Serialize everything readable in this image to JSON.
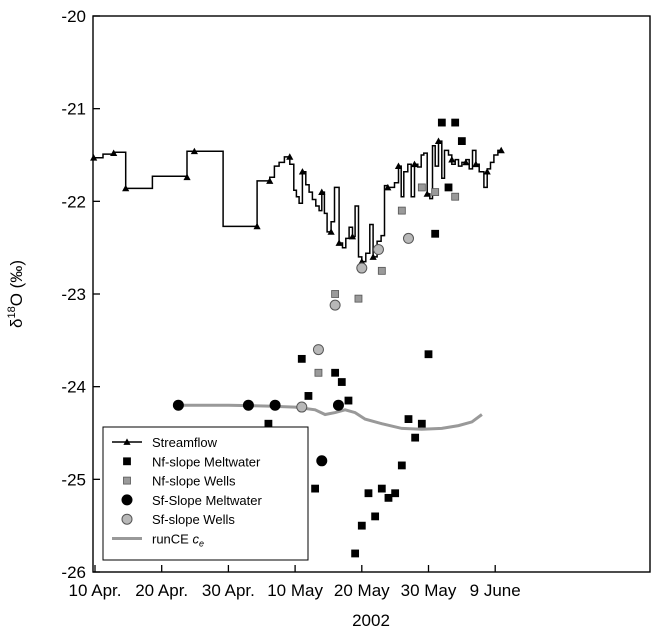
{
  "chart_data": {
    "type": "line",
    "xlabel": "2002",
    "ylabel": "δ18O (‰)",
    "ylabel_parts": {
      "delta": "δ",
      "sup": "18",
      "rest": "O (‰)"
    },
    "x_range_days": [
      0,
      60.5
    ],
    "ylim": [
      -26,
      -20
    ],
    "x_ticks": [
      {
        "label": "10 Apr.",
        "day": 0
      },
      {
        "label": "20 Apr.",
        "day": 10
      },
      {
        "label": "30 Apr.",
        "day": 20
      },
      {
        "label": "10 May",
        "day": 30
      },
      {
        "label": "20 May",
        "day": 40
      },
      {
        "label": "30 May",
        "day": 50
      },
      {
        "label": "9 June",
        "day": 60
      }
    ],
    "y_ticks": [
      "-26",
      "-25",
      "-24",
      "-23",
      "-22",
      "-21",
      "-20"
    ],
    "y_tick_values": [
      -26,
      -25,
      -24,
      -23,
      -22,
      -21,
      -20
    ],
    "legend_position": "bottom-left",
    "series": [
      {
        "name": "Streamflow",
        "kind": "step",
        "color": "#000000",
        "marker": "triangle",
        "points": [
          [
            -0.2,
            -21.53
          ],
          [
            1.2,
            -21.53
          ],
          [
            1.2,
            -21.49
          ],
          [
            2.8,
            -21.49
          ],
          [
            2.8,
            -21.47
          ],
          [
            4.6,
            -21.47
          ],
          [
            4.6,
            -21.86
          ],
          [
            8.6,
            -21.86
          ],
          [
            8.6,
            -21.73
          ],
          [
            13.8,
            -21.73
          ],
          [
            13.8,
            -21.46
          ],
          [
            19.2,
            -21.46
          ],
          [
            19.2,
            -22.27
          ],
          [
            24.3,
            -22.27
          ],
          [
            24.3,
            -21.78
          ],
          [
            26.2,
            -21.78
          ],
          [
            26.2,
            -21.74
          ],
          [
            26.9,
            -21.74
          ],
          [
            26.9,
            -21.62
          ],
          [
            27.6,
            -21.62
          ],
          [
            27.6,
            -21.58
          ],
          [
            28.4,
            -21.58
          ],
          [
            28.4,
            -21.52
          ],
          [
            29.2,
            -21.52
          ],
          [
            29.2,
            -21.6
          ],
          [
            29.8,
            -21.6
          ],
          [
            29.8,
            -21.88
          ],
          [
            30.2,
            -21.88
          ],
          [
            30.2,
            -21.95
          ],
          [
            30.6,
            -21.95
          ],
          [
            30.6,
            -22.02
          ],
          [
            31.1,
            -22.02
          ],
          [
            31.1,
            -21.68
          ],
          [
            31.6,
            -21.68
          ],
          [
            31.6,
            -21.82
          ],
          [
            32.1,
            -21.82
          ],
          [
            32.1,
            -21.9
          ],
          [
            32.6,
            -21.9
          ],
          [
            32.6,
            -21.98
          ],
          [
            33.1,
            -21.98
          ],
          [
            33.1,
            -22.05
          ],
          [
            33.6,
            -22.05
          ],
          [
            33.6,
            -22.1
          ],
          [
            34.0,
            -22.1
          ],
          [
            34.0,
            -21.9
          ],
          [
            34.4,
            -21.9
          ],
          [
            34.4,
            -22.13
          ],
          [
            34.8,
            -22.13
          ],
          [
            34.8,
            -22.33
          ],
          [
            35.4,
            -22.33
          ],
          [
            35.4,
            -22.22
          ],
          [
            35.9,
            -22.22
          ],
          [
            35.9,
            -21.85
          ],
          [
            36.6,
            -21.85
          ],
          [
            36.6,
            -22.45
          ],
          [
            37.1,
            -22.45
          ],
          [
            37.1,
            -22.5
          ],
          [
            37.6,
            -22.5
          ],
          [
            37.6,
            -22.4
          ],
          [
            38.1,
            -22.4
          ],
          [
            38.1,
            -22.28
          ],
          [
            38.6,
            -22.28
          ],
          [
            38.6,
            -22.38
          ],
          [
            39.0,
            -22.38
          ],
          [
            39.0,
            -22.05
          ],
          [
            39.5,
            -22.05
          ],
          [
            39.5,
            -22.6
          ],
          [
            40.0,
            -22.6
          ],
          [
            40.0,
            -22.65
          ],
          [
            40.6,
            -22.65
          ],
          [
            40.6,
            -22.56
          ],
          [
            41.2,
            -22.56
          ],
          [
            41.2,
            -22.25
          ],
          [
            41.7,
            -22.25
          ],
          [
            41.7,
            -22.6
          ],
          [
            42.3,
            -22.6
          ],
          [
            42.3,
            -22.43
          ],
          [
            42.9,
            -22.43
          ],
          [
            42.9,
            -22.37
          ],
          [
            43.4,
            -22.37
          ],
          [
            43.4,
            -21.83
          ],
          [
            43.9,
            -21.83
          ],
          [
            43.9,
            -21.85
          ],
          [
            44.9,
            -21.85
          ],
          [
            44.9,
            -21.8
          ],
          [
            45.5,
            -21.8
          ],
          [
            45.5,
            -21.62
          ],
          [
            45.9,
            -21.62
          ],
          [
            45.9,
            -21.95
          ],
          [
            46.3,
            -21.95
          ],
          [
            46.3,
            -21.68
          ],
          [
            46.9,
            -21.68
          ],
          [
            46.9,
            -21.6
          ],
          [
            47.4,
            -21.6
          ],
          [
            47.4,
            -21.95
          ],
          [
            47.9,
            -21.95
          ],
          [
            47.9,
            -21.6
          ],
          [
            48.4,
            -21.6
          ],
          [
            48.4,
            -21.63
          ],
          [
            48.9,
            -21.63
          ],
          [
            48.9,
            -21.5
          ],
          [
            49.3,
            -21.5
          ],
          [
            49.3,
            -21.48
          ],
          [
            49.8,
            -21.48
          ],
          [
            49.8,
            -21.92
          ],
          [
            50.2,
            -21.92
          ],
          [
            50.2,
            -21.97
          ],
          [
            50.6,
            -21.97
          ],
          [
            50.6,
            -21.4
          ],
          [
            51.0,
            -21.4
          ],
          [
            51.0,
            -21.62
          ],
          [
            51.5,
            -21.62
          ],
          [
            51.5,
            -21.35
          ],
          [
            52.0,
            -21.35
          ],
          [
            52.0,
            -21.75
          ],
          [
            52.4,
            -21.75
          ],
          [
            52.4,
            -21.45
          ],
          [
            53.0,
            -21.45
          ],
          [
            53.0,
            -21.5
          ],
          [
            53.5,
            -21.5
          ],
          [
            53.5,
            -21.6
          ],
          [
            54.0,
            -21.6
          ],
          [
            54.0,
            -21.55
          ],
          [
            54.5,
            -21.55
          ],
          [
            54.5,
            -21.62
          ],
          [
            55.0,
            -21.62
          ],
          [
            55.0,
            -21.58
          ],
          [
            55.6,
            -21.58
          ],
          [
            55.6,
            -21.55
          ],
          [
            56.1,
            -21.55
          ],
          [
            56.1,
            -21.65
          ],
          [
            56.6,
            -21.65
          ],
          [
            56.6,
            -21.45
          ],
          [
            57.1,
            -21.45
          ],
          [
            57.1,
            -21.6
          ],
          [
            57.6,
            -21.6
          ],
          [
            57.6,
            -21.68
          ],
          [
            58.3,
            -21.68
          ],
          [
            58.3,
            -21.85
          ],
          [
            58.8,
            -21.85
          ],
          [
            58.8,
            -21.65
          ],
          [
            59.3,
            -21.65
          ],
          [
            59.3,
            -21.58
          ],
          [
            59.8,
            -21.58
          ],
          [
            59.8,
            -21.5
          ],
          [
            60.4,
            -21.5
          ],
          [
            60.4,
            -21.45
          ],
          [
            60.9,
            -21.45
          ]
        ],
        "markers": [
          [
            -0.2,
            -21.53
          ],
          [
            2.8,
            -21.48
          ],
          [
            4.6,
            -21.86
          ],
          [
            13.8,
            -21.74
          ],
          [
            14.9,
            -21.46
          ],
          [
            24.3,
            -22.27
          ],
          [
            26.2,
            -21.78
          ],
          [
            29.2,
            -21.52
          ],
          [
            31.1,
            -21.68
          ],
          [
            34.0,
            -21.9
          ],
          [
            35.4,
            -22.33
          ],
          [
            36.6,
            -22.45
          ],
          [
            38.6,
            -22.38
          ],
          [
            40.0,
            -22.65
          ],
          [
            41.7,
            -22.6
          ],
          [
            43.9,
            -21.85
          ],
          [
            45.5,
            -21.62
          ],
          [
            47.9,
            -21.6
          ],
          [
            49.8,
            -21.92
          ],
          [
            51.5,
            -21.35
          ],
          [
            53.5,
            -21.55
          ],
          [
            55.6,
            -21.58
          ],
          [
            57.1,
            -21.6
          ],
          [
            58.8,
            -21.68
          ],
          [
            60.9,
            -21.45
          ]
        ]
      },
      {
        "name": "Nf-slope Meltwater",
        "kind": "scatter",
        "color": "#000000",
        "marker": "square",
        "points": [
          [
            26.0,
            -24.4
          ],
          [
            31.0,
            -23.7
          ],
          [
            32.0,
            -24.1
          ],
          [
            33.0,
            -25.1
          ],
          [
            36.0,
            -23.85
          ],
          [
            37.0,
            -23.95
          ],
          [
            38.0,
            -24.15
          ],
          [
            39.0,
            -25.8
          ],
          [
            40.0,
            -25.5
          ],
          [
            41.0,
            -25.15
          ],
          [
            42.0,
            -25.4
          ],
          [
            43.0,
            -25.1
          ],
          [
            44.0,
            -25.2
          ],
          [
            45.0,
            -25.15
          ],
          [
            46.0,
            -24.85
          ],
          [
            47.0,
            -24.35
          ],
          [
            48.0,
            -24.55
          ],
          [
            49.0,
            -24.4
          ],
          [
            50.0,
            -23.65
          ],
          [
            51.0,
            -22.35
          ],
          [
            52.0,
            -21.15
          ],
          [
            53.0,
            -21.85
          ],
          [
            54.0,
            -21.15
          ],
          [
            55.0,
            -21.35
          ]
        ]
      },
      {
        "name": "Nf-slope Wells",
        "kind": "scatter",
        "color": "#9a9a9a",
        "marker": "square",
        "points": [
          [
            33.5,
            -23.85
          ],
          [
            36.0,
            -23.0
          ],
          [
            39.5,
            -23.05
          ],
          [
            43.0,
            -22.75
          ],
          [
            46.0,
            -22.1
          ],
          [
            49.0,
            -21.85
          ],
          [
            51.0,
            -21.9
          ],
          [
            54.0,
            -21.95
          ]
        ]
      },
      {
        "name": "Sf-Slope Meltwater",
        "kind": "scatter",
        "color": "#000000",
        "marker": "circle",
        "points": [
          [
            12.5,
            -24.2
          ],
          [
            23.0,
            -24.2
          ],
          [
            27.0,
            -24.2
          ],
          [
            31.0,
            -25.0
          ],
          [
            34.0,
            -24.8
          ],
          [
            36.5,
            -24.2
          ]
        ]
      },
      {
        "name": "Sf-slope Wells",
        "kind": "scatter",
        "color": "#b8b8b8",
        "marker": "circle",
        "points": [
          [
            31.0,
            -24.22
          ],
          [
            33.5,
            -23.6
          ],
          [
            36.0,
            -23.12
          ],
          [
            40.0,
            -22.72
          ],
          [
            42.5,
            -22.52
          ],
          [
            47.0,
            -22.4
          ]
        ]
      },
      {
        "name": "runCE ce",
        "label_parts": {
          "text": "runCE ",
          "italic": "c",
          "sub": "e"
        },
        "kind": "line",
        "color": "#999999",
        "points": [
          [
            12.5,
            -24.2
          ],
          [
            20,
            -24.2
          ],
          [
            26,
            -24.21
          ],
          [
            30,
            -24.22
          ],
          [
            33,
            -24.25
          ],
          [
            34.5,
            -24.3
          ],
          [
            36,
            -24.28
          ],
          [
            37.5,
            -24.25
          ],
          [
            39,
            -24.28
          ],
          [
            40.5,
            -24.35
          ],
          [
            43,
            -24.4
          ],
          [
            46,
            -24.45
          ],
          [
            49,
            -24.46
          ],
          [
            52,
            -24.45
          ],
          [
            54.5,
            -24.42
          ],
          [
            56.5,
            -24.38
          ],
          [
            58,
            -24.3
          ]
        ]
      }
    ]
  }
}
